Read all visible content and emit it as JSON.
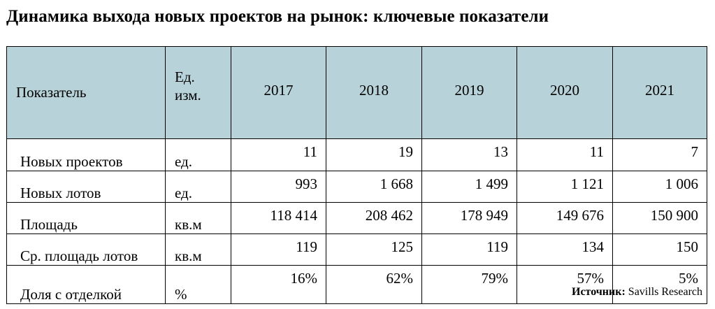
{
  "title": "Динамика выхода новых проектов на рынок: ключевые показатели",
  "table": {
    "headers": {
      "indicator": "Показатель",
      "unit_line1": "Ед.",
      "unit_line2": "изм.",
      "years": [
        "2017",
        "2018",
        "2019",
        "2020",
        "2021"
      ]
    },
    "rows": [
      {
        "name": "Новых проектов",
        "unit": "ед.",
        "values": [
          "11",
          "19",
          "13",
          "11",
          "7"
        ]
      },
      {
        "name": "Новых лотов",
        "unit": "ед.",
        "values": [
          "993",
          "1 668",
          "1 499",
          "1 121",
          "1 006"
        ]
      },
      {
        "name": "Площадь",
        "unit": "кв.м",
        "values": [
          "118 414",
          "208 462",
          "178 949",
          "149 676",
          "150 900"
        ]
      },
      {
        "name": "Ср. площадь лотов",
        "unit": "кв.м",
        "values": [
          "119",
          "125",
          "119",
          "134",
          "150"
        ]
      },
      {
        "name": "Доля с отделкой",
        "unit": "%",
        "values": [
          "16%",
          "62%",
          "79%",
          "57%",
          "5%"
        ]
      }
    ]
  },
  "source": {
    "label": "Источник:",
    "text": "Savills Research"
  },
  "colors": {
    "header_bg": "#b7d3d9"
  }
}
